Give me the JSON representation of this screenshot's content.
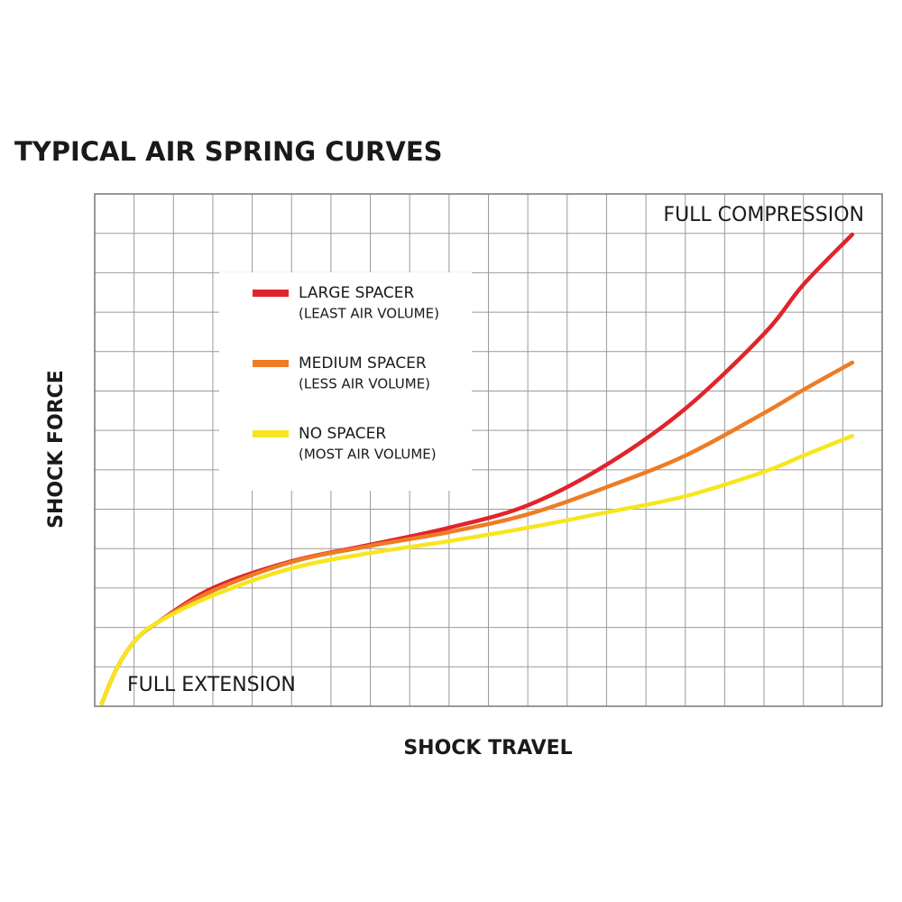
{
  "chart_data": {
    "type": "line",
    "title": "TYPICAL AIR SPRING CURVES",
    "x_label": "SHOCK TRAVEL",
    "y_label": "SHOCK FORCE",
    "annotations": [
      "FULL COMPRESSION",
      "FULL EXTENSION"
    ],
    "x": [
      0.18,
      0.57,
      1.03,
      1.6,
      3,
      5,
      7,
      9,
      11,
      13,
      15,
      17,
      18,
      19.24
    ],
    "series": [
      {
        "name": "LARGE SPACER",
        "note": "(LEAST AIR VOLUME)",
        "color": "#e1242b",
        "values": [
          0.07,
          0.98,
          1.67,
          2.13,
          3.0,
          3.68,
          4.1,
          4.53,
          5.1,
          6.13,
          7.55,
          9.45,
          10.7,
          11.97
        ]
      },
      {
        "name": "MEDIUM SPACER",
        "note": "(LESS AIR VOLUME)",
        "color": "#ee7c24",
        "values": [
          0.07,
          0.98,
          1.67,
          2.13,
          2.93,
          3.66,
          4.07,
          4.42,
          4.87,
          5.56,
          6.36,
          7.44,
          8.03,
          8.72
        ]
      },
      {
        "name": "NO SPACER",
        "note": "(MOST AIR VOLUME)",
        "color": "#f7e51f",
        "values": [
          0.07,
          0.98,
          1.67,
          2.13,
          2.81,
          3.5,
          3.89,
          4.19,
          4.53,
          4.92,
          5.33,
          5.95,
          6.36,
          6.86
        ]
      }
    ],
    "xlim": [
      0,
      20
    ],
    "ylim": [
      0,
      13
    ],
    "grid": true
  }
}
